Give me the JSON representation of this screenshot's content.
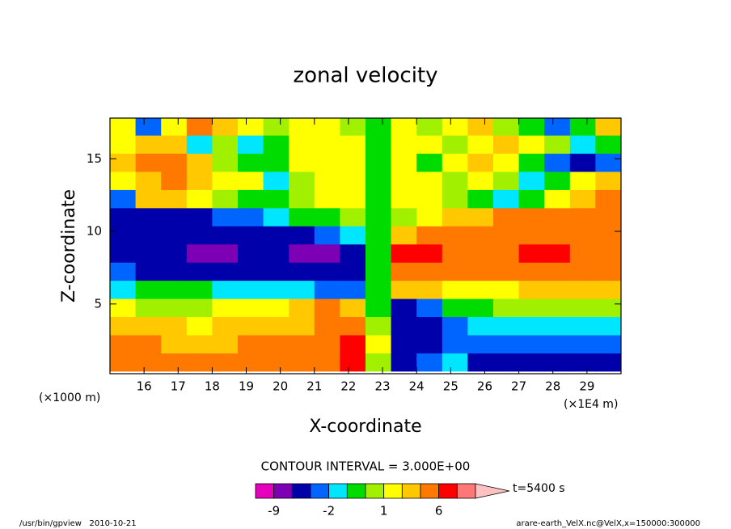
{
  "chart_data": {
    "type": "contour",
    "title": "zonal velocity",
    "xlabel": "X-coordinate",
    "ylabel": "Z-coordinate",
    "xunit": "(×1E4 m)",
    "yunit": "(×1000 m)",
    "xlim": [
      15,
      30
    ],
    "ylim": [
      0.2,
      17.8
    ],
    "xticks": [
      16,
      17,
      18,
      19,
      20,
      21,
      22,
      23,
      24,
      25,
      26,
      27,
      28,
      29
    ],
    "yticks": [
      5,
      10,
      15
    ],
    "x": [
      15.375,
      16.125,
      16.875,
      17.625,
      18.375,
      19.125,
      19.875,
      20.625,
      21.375,
      22.125,
      22.875,
      23.625,
      24.375,
      25.125,
      25.875,
      26.625,
      27.375,
      28.125,
      28.875,
      29.625
    ],
    "y": [
      1,
      2.25,
      3.5,
      4.75,
      6,
      7.25,
      8.5,
      9.75,
      11,
      12.25,
      13.5,
      14.75,
      16,
      17.25
    ],
    "z": [
      [
        4.5,
        4.5,
        4.5,
        4.5,
        4.5,
        4.5,
        4.5,
        4.5,
        4.5,
        7.5,
        0.5,
        -4.5,
        -2.5,
        -1.5,
        -4.5,
        -4.5,
        -4.5,
        -4.5,
        -4.5,
        -4.5
      ],
      [
        4.5,
        4.5,
        2.5,
        2.5,
        2.5,
        4.5,
        4.5,
        4.5,
        4.5,
        7.5,
        1.5,
        -4.5,
        -4.5,
        -2.5,
        -2.5,
        -2.5,
        -2.5,
        -2.5,
        -2.5,
        -2.5
      ],
      [
        2.5,
        2.5,
        2.5,
        1.5,
        2.5,
        2.5,
        2.5,
        2.5,
        4.5,
        4.5,
        0.5,
        -4.5,
        -4.5,
        -2.5,
        -1.5,
        -1.5,
        -1.5,
        -1.5,
        -1.5,
        -1.5
      ],
      [
        1.5,
        0.5,
        0.5,
        0.5,
        1.5,
        1.5,
        1.5,
        2.5,
        4.5,
        2.5,
        -0.5,
        -4.5,
        -2.5,
        -0.5,
        -0.5,
        0.5,
        0.5,
        0.5,
        0.5,
        0.5
      ],
      [
        -1.5,
        -0.5,
        -0.5,
        -0.5,
        -1.5,
        -1.5,
        -1.5,
        -1.5,
        -2.5,
        -2.5,
        -0.5,
        2.5,
        2.5,
        1.5,
        1.5,
        1.5,
        2.5,
        2.5,
        2.5,
        2.5
      ],
      [
        -2.5,
        -4.5,
        -4.5,
        -4.5,
        -4.5,
        -4.5,
        -4.5,
        -4.5,
        -4.5,
        -4.5,
        -0.5,
        4.5,
        4.5,
        4.5,
        4.5,
        4.5,
        4.5,
        4.5,
        4.5,
        4.5
      ],
      [
        -4.5,
        -4.5,
        -4.5,
        -7,
        -7,
        -4.5,
        -4.5,
        -7,
        -7,
        -4.5,
        -0.5,
        7.5,
        7.5,
        4.5,
        4.5,
        4.5,
        7.5,
        7.5,
        4.5,
        4.5
      ],
      [
        -4.5,
        -4.5,
        -4.5,
        -4.5,
        -4.5,
        -4.5,
        -4.5,
        -4.5,
        -2.5,
        -1.5,
        -0.5,
        2.5,
        4.5,
        4.5,
        4.5,
        4.5,
        4.5,
        4.5,
        4.5,
        4.5
      ],
      [
        -4.5,
        -4.5,
        -4.5,
        -4.5,
        -2.5,
        -2.5,
        -1.5,
        -0.5,
        -0.5,
        0.5,
        -0.5,
        0.5,
        1.5,
        2.5,
        2.5,
        4.5,
        4.5,
        4.5,
        4.5,
        4.5
      ],
      [
        -2.5,
        2.5,
        2.5,
        1.5,
        0.5,
        -0.5,
        -0.5,
        0.5,
        1.5,
        1.5,
        -0.5,
        1.5,
        1.5,
        0.5,
        -0.5,
        -1.5,
        -0.5,
        1.5,
        2.5,
        4.5
      ],
      [
        1.5,
        2.5,
        4.5,
        2.5,
        1.5,
        1.5,
        -1.5,
        0.5,
        1.5,
        1.5,
        -0.5,
        1.5,
        1.5,
        0.5,
        1.5,
        0.5,
        -1.5,
        -0.5,
        1.5,
        2.5
      ],
      [
        2.5,
        4.5,
        4.5,
        2.5,
        0.5,
        -0.5,
        -0.5,
        1.5,
        1.5,
        1.5,
        -0.5,
        1.5,
        -0.5,
        1.5,
        2.5,
        1.5,
        -0.5,
        -2.5,
        -4.5,
        -2.5
      ],
      [
        1.5,
        2.5,
        2.5,
        -1.5,
        0.5,
        -1.5,
        -0.5,
        1.5,
        1.5,
        1.5,
        -0.5,
        1.5,
        1.5,
        0.5,
        1.5,
        2.5,
        1.5,
        0.5,
        -1.5,
        -0.5
      ],
      [
        1.5,
        -2.5,
        1.5,
        4.5,
        2.5,
        1.5,
        0.5,
        1.5,
        1.5,
        0.5,
        -0.5,
        1.5,
        0.5,
        1.5,
        2.5,
        0.5,
        -0.5,
        -2.5,
        -0.5,
        2.5
      ]
    ],
    "levels": [
      -12,
      -9,
      -6,
      -3,
      -2,
      -1,
      0,
      1,
      2,
      3,
      6,
      9,
      12
    ],
    "colors": [
      "#e600be",
      "#7d00b4",
      "#0000aa",
      "#0064ff",
      "#00e6ff",
      "#00dc00",
      "#a0f000",
      "#ffff00",
      "#ffc800",
      "#ff7800",
      "#ff0000",
      "#ff7878",
      "#ffc0c0"
    ],
    "colorbar_ticks": [
      -9,
      -2,
      1,
      6
    ],
    "contour_interval": "CONTOUR INTERVAL = 3.000E+00",
    "time_label": "t=5400 s",
    "footer_left": "/usr/bin/gpview   2010-10-21",
    "footer_right": "arare-earth_VelX.nc@VelX,x=150000:300000"
  }
}
